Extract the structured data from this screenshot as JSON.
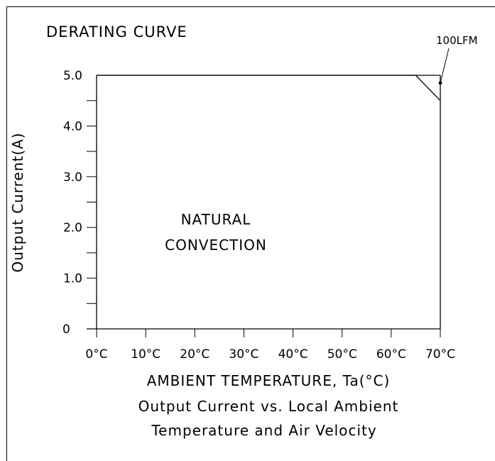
{
  "chart_data": {
    "type": "line",
    "title": "DERATING CURVE",
    "xlabel": "AMBIENT TEMPERATURE, Ta(°C)",
    "ylabel": "Output Current(A)",
    "caption_line1": "Output Current vs. Local Ambient",
    "caption_line2": "Temperature and Air Velocity",
    "x_tick_labels": [
      "0°C",
      "10°C",
      "20°C",
      "30°C",
      "40°C",
      "50°C",
      "60°C",
      "70°C"
    ],
    "y_tick_labels": [
      "0",
      "1.0",
      "2.0",
      "3.0",
      "4.0",
      "5.0"
    ],
    "xlim": [
      0,
      70
    ],
    "ylim": [
      0,
      5
    ],
    "region_label_line1": "NATURAL",
    "region_label_line2": "CONVECTION",
    "annotation": "100LFM",
    "series": [
      {
        "x": [
          0,
          65,
          70
        ],
        "y": [
          5.0,
          5.0,
          4.5
        ]
      },
      {
        "name": "100LFM",
        "x": [
          0,
          70
        ],
        "y": [
          5.0,
          5.0
        ]
      }
    ],
    "annotation_point": {
      "x": 70,
      "y": 4.85
    },
    "grid": false,
    "legend": "none"
  }
}
